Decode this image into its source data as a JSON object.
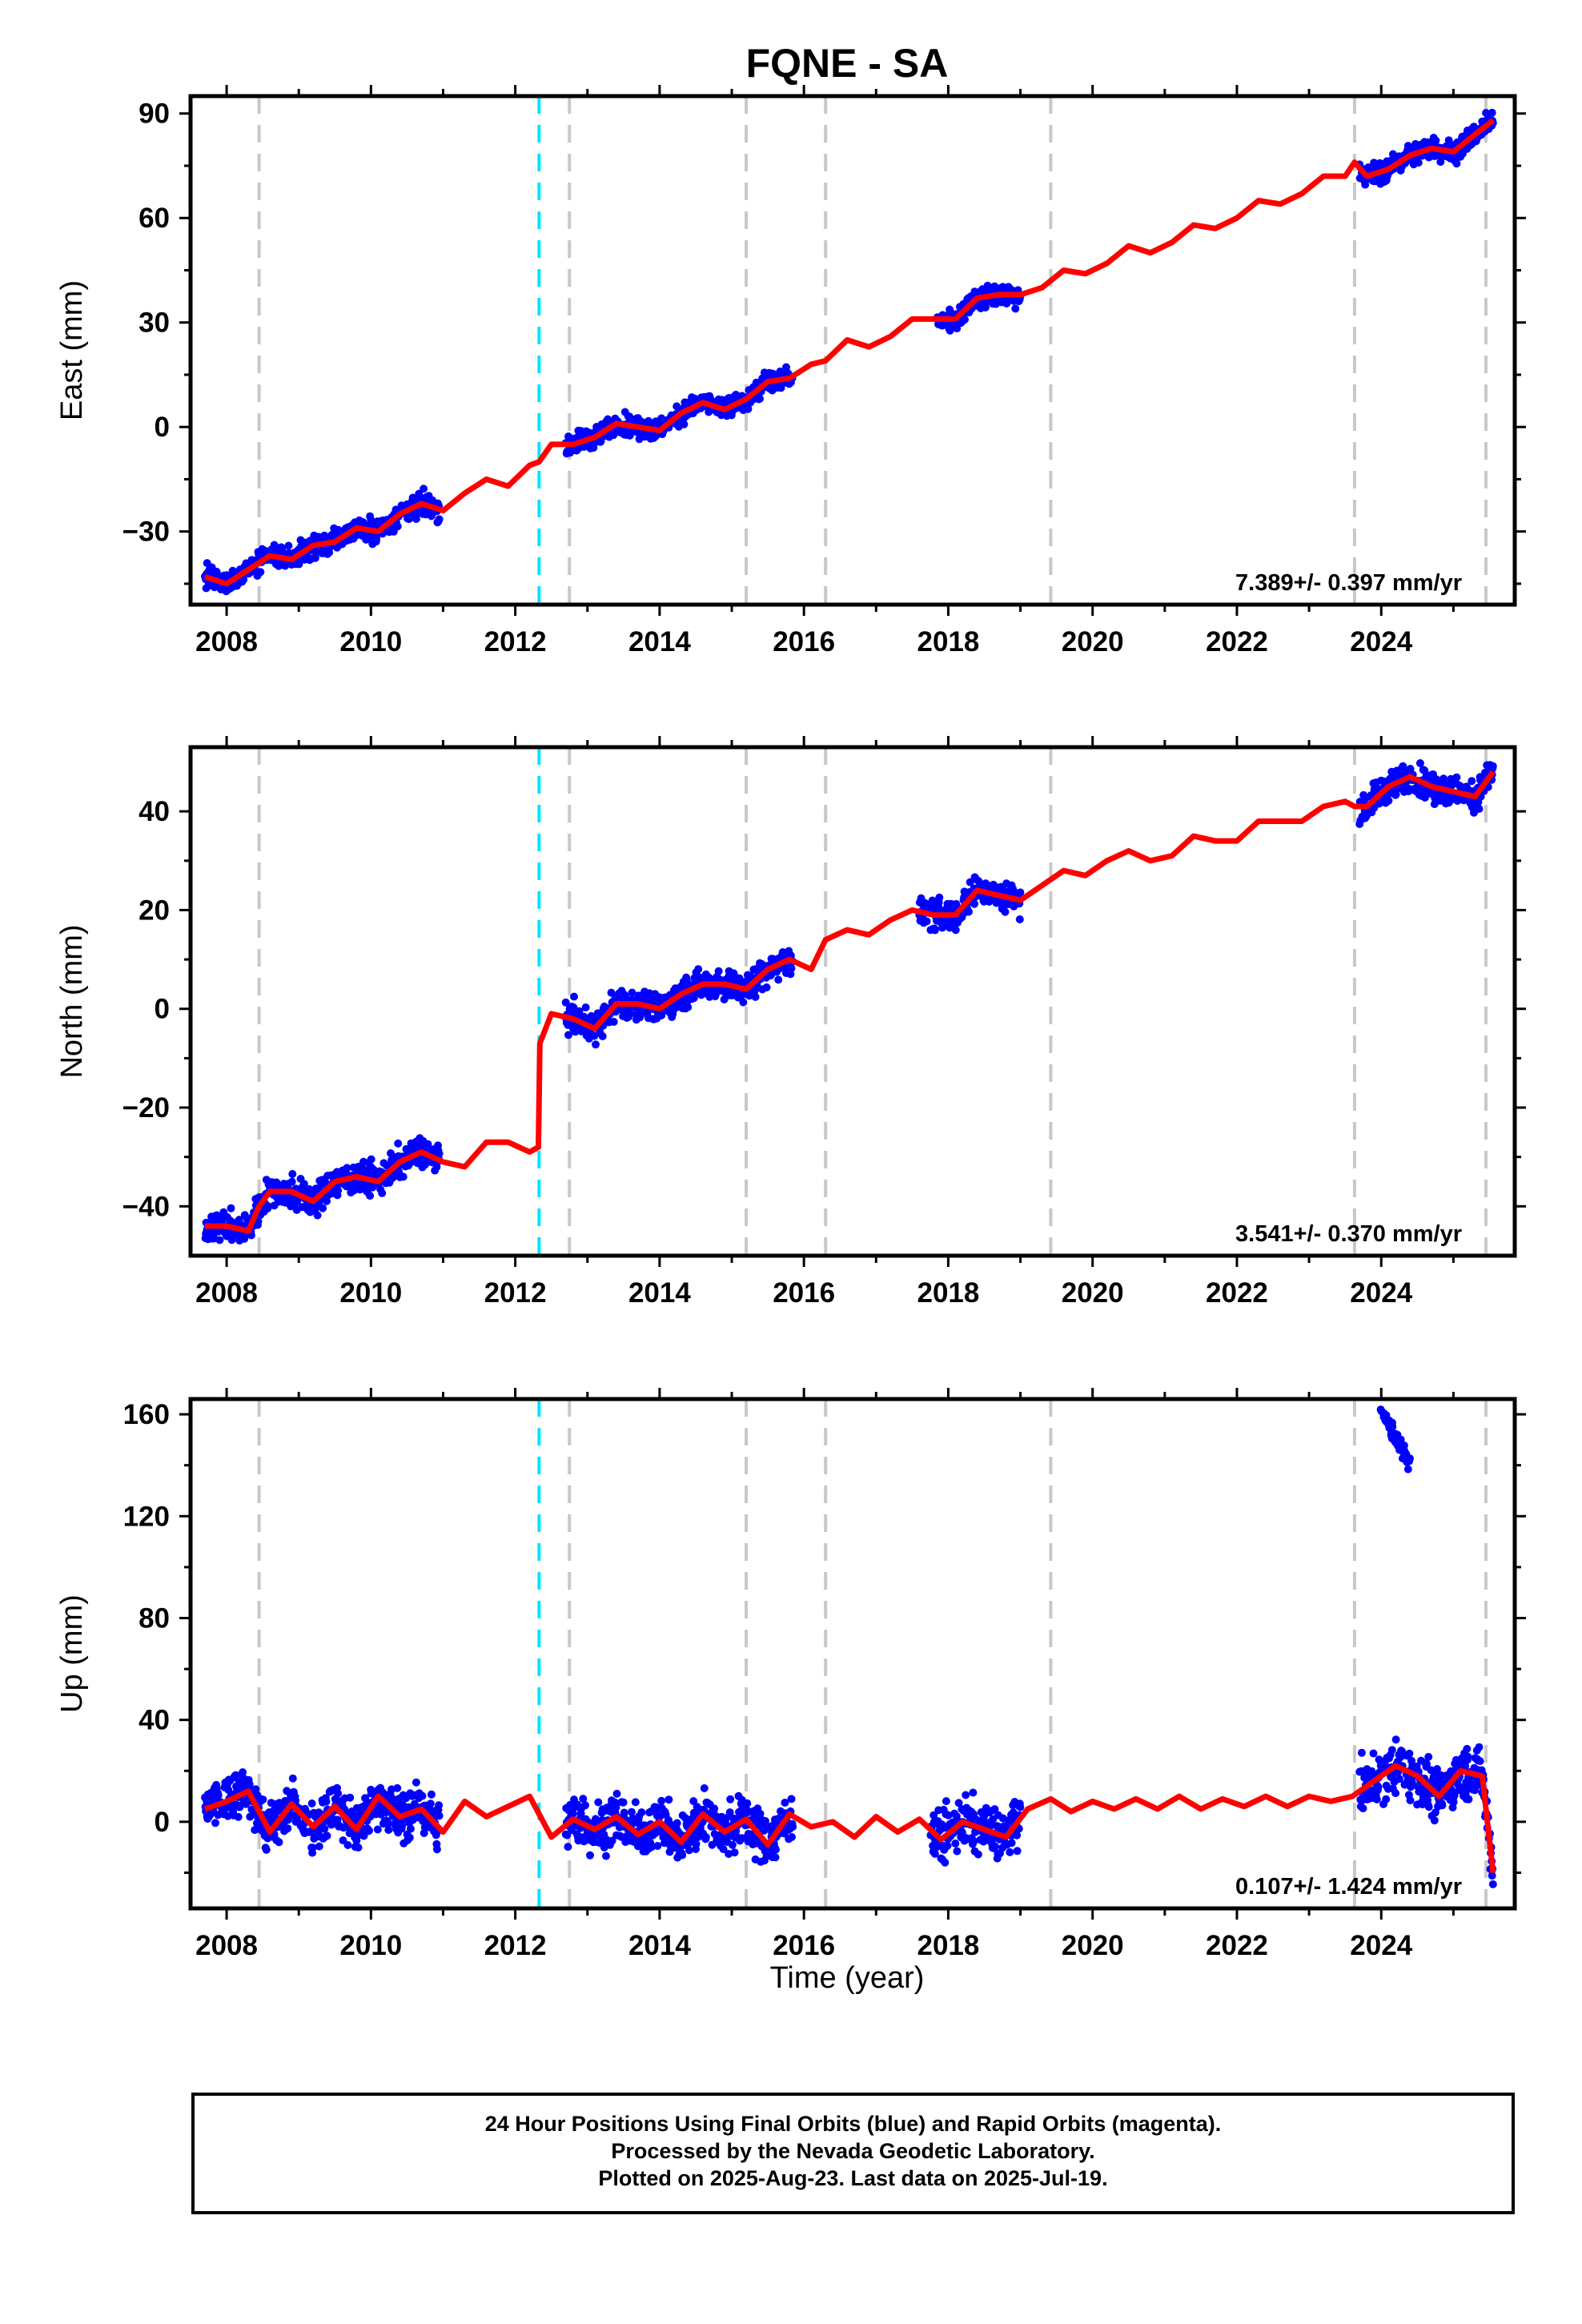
{
  "title": "FQNE - SA",
  "x_label": "Time (year)",
  "footer": {
    "line1": "24 Hour Positions Using Final Orbits (blue) and Rapid Orbits (magenta).",
    "line2": "Processed by the Nevada Geodetic Laboratory.",
    "line3": "Plotted on 2025-Aug-23. Last data on 2025-Jul-19."
  },
  "colors": {
    "points": "#0000ff",
    "model": "#ff0000",
    "equipment_change": "#c8c8c8",
    "earthquake": "#00e5ff"
  },
  "chart_data": [
    {
      "type": "scatter",
      "panel": "east",
      "ylabel": "East (mm)",
      "xlim": [
        2007.5,
        2025.85
      ],
      "ylim": [
        -51,
        95
      ],
      "yticks": [
        -30,
        0,
        30,
        60,
        90
      ],
      "xticks": [
        2008,
        2010,
        2012,
        2014,
        2016,
        2018,
        2020,
        2022,
        2024
      ],
      "rate": "7.389+/- 0.397 mm/yr",
      "equipment_changes": [
        2008.45,
        2012.75,
        2015.2,
        2016.3,
        2019.42,
        2023.63,
        2025.45
      ],
      "earthquakes": [
        2012.33
      ],
      "data_segments": [
        [
          2007.7,
          2010.95
        ],
        [
          2012.7,
          2015.85
        ],
        [
          2017.85,
          2019.0
        ],
        [
          2023.7,
          2025.55
        ]
      ],
      "series": [
        {
          "kind": "model",
          "x": [
            2007.7,
            2008.0,
            2008.3,
            2008.6,
            2008.9,
            2009.2,
            2009.5,
            2009.8,
            2010.1,
            2010.4,
            2010.7,
            2011.0,
            2011.3,
            2011.6,
            2011.9,
            2012.2,
            2012.33,
            2012.5,
            2012.8,
            2013.1,
            2013.4,
            2013.7,
            2014.0,
            2014.3,
            2014.6,
            2014.9,
            2015.2,
            2015.5,
            2015.8,
            2016.1,
            2016.3,
            2016.6,
            2016.9,
            2017.2,
            2017.5,
            2017.8,
            2018.1,
            2018.4,
            2018.7,
            2019.0,
            2019.3,
            2019.6,
            2019.9,
            2020.2,
            2020.5,
            2020.8,
            2021.1,
            2021.4,
            2021.7,
            2022.0,
            2022.3,
            2022.6,
            2022.9,
            2023.2,
            2023.5,
            2023.63,
            2023.8,
            2024.1,
            2024.4,
            2024.7,
            2025.0,
            2025.3,
            2025.55
          ],
          "y": [
            -43,
            -45,
            -41,
            -37,
            -38,
            -34,
            -33,
            -29,
            -30,
            -25,
            -22,
            -24,
            -19,
            -15,
            -17,
            -11,
            -10,
            -5,
            -5,
            -3,
            1,
            0,
            -1,
            4,
            7,
            5,
            8,
            13,
            14,
            18,
            19,
            25,
            23,
            26,
            31,
            31,
            31,
            37,
            38,
            38,
            40,
            45,
            44,
            47,
            52,
            50,
            53,
            58,
            57,
            60,
            65,
            64,
            67,
            72,
            72,
            76,
            72,
            74,
            78,
            80,
            79,
            84,
            88
          ]
        }
      ]
    },
    {
      "type": "scatter",
      "panel": "north",
      "ylabel": "North (mm)",
      "xlim": [
        2007.5,
        2025.85
      ],
      "ylim": [
        -50,
        53
      ],
      "yticks": [
        -40,
        -20,
        0,
        20,
        40
      ],
      "xticks": [
        2008,
        2010,
        2012,
        2014,
        2016,
        2018,
        2020,
        2022,
        2024
      ],
      "rate": "3.541+/- 0.370 mm/yr",
      "equipment_changes": [
        2008.45,
        2012.75,
        2015.2,
        2016.3,
        2019.42,
        2023.63,
        2025.45
      ],
      "earthquakes": [
        2012.33
      ],
      "data_segments": [
        [
          2007.7,
          2010.95
        ],
        [
          2012.7,
          2015.85
        ],
        [
          2017.6,
          2019.0
        ],
        [
          2023.7,
          2025.55
        ]
      ],
      "series": [
        {
          "kind": "model",
          "x": [
            2007.7,
            2008.0,
            2008.3,
            2008.45,
            2008.6,
            2008.9,
            2009.2,
            2009.5,
            2009.8,
            2010.1,
            2010.4,
            2010.7,
            2011.0,
            2011.3,
            2011.6,
            2011.9,
            2012.2,
            2012.32,
            2012.34,
            2012.5,
            2012.8,
            2013.1,
            2013.4,
            2013.7,
            2014.0,
            2014.3,
            2014.6,
            2014.9,
            2015.2,
            2015.5,
            2015.8,
            2016.1,
            2016.3,
            2016.6,
            2016.9,
            2017.2,
            2017.5,
            2017.8,
            2018.1,
            2018.4,
            2018.7,
            2019.0,
            2019.3,
            2019.6,
            2019.9,
            2020.2,
            2020.5,
            2020.8,
            2021.1,
            2021.4,
            2021.7,
            2022.0,
            2022.3,
            2022.6,
            2022.9,
            2023.2,
            2023.5,
            2023.63,
            2023.8,
            2024.1,
            2024.4,
            2024.7,
            2025.0,
            2025.3,
            2025.55
          ],
          "y": [
            -44,
            -44,
            -45,
            -40,
            -37,
            -37,
            -39,
            -35,
            -34,
            -35,
            -31,
            -29,
            -31,
            -32,
            -27,
            -27,
            -29,
            -28,
            -7,
            -1,
            -2,
            -4,
            1,
            1,
            0,
            3,
            5,
            5,
            4,
            8,
            10,
            8,
            14,
            16,
            15,
            18,
            20,
            19,
            19,
            24,
            23,
            22,
            25,
            28,
            27,
            30,
            32,
            30,
            31,
            35,
            34,
            34,
            38,
            38,
            38,
            41,
            42,
            41,
            41,
            45,
            47,
            45,
            44,
            43,
            48
          ]
        }
      ]
    },
    {
      "type": "scatter",
      "panel": "up",
      "ylabel": "Up (mm)",
      "xlim": [
        2007.5,
        2025.85
      ],
      "ylim": [
        -34,
        166
      ],
      "yticks": [
        0,
        40,
        80,
        120,
        160
      ],
      "xticks": [
        2008,
        2010,
        2012,
        2014,
        2016,
        2018,
        2020,
        2022,
        2024
      ],
      "rate": "0.107+/- 1.424 mm/yr",
      "equipment_changes": [
        2008.45,
        2012.75,
        2015.2,
        2016.3,
        2019.42,
        2023.63,
        2025.45
      ],
      "earthquakes": [
        2012.33
      ],
      "data_segments": [
        [
          2007.7,
          2010.95
        ],
        [
          2012.7,
          2015.85
        ],
        [
          2017.75,
          2019.0
        ],
        [
          2023.7,
          2025.55
        ]
      ],
      "outlier_cluster": {
        "x": [
          2024.0,
          2024.4
        ],
        "y": [
          140,
          162
        ]
      },
      "series": [
        {
          "kind": "model",
          "x": [
            2007.7,
            2008.0,
            2008.3,
            2008.6,
            2008.9,
            2009.2,
            2009.5,
            2009.8,
            2010.1,
            2010.4,
            2010.7,
            2011.0,
            2011.3,
            2011.6,
            2011.9,
            2012.2,
            2012.33,
            2012.5,
            2012.8,
            2013.1,
            2013.4,
            2013.7,
            2014.0,
            2014.3,
            2014.6,
            2014.9,
            2015.2,
            2015.5,
            2015.8,
            2016.1,
            2016.4,
            2016.7,
            2017.0,
            2017.3,
            2017.6,
            2017.9,
            2018.2,
            2018.5,
            2018.8,
            2019.1,
            2019.42,
            2019.7,
            2020.0,
            2020.3,
            2020.6,
            2020.9,
            2021.2,
            2021.5,
            2021.8,
            2022.1,
            2022.4,
            2022.7,
            2023.0,
            2023.3,
            2023.6,
            2023.9,
            2024.2,
            2024.5,
            2024.8,
            2025.1,
            2025.4,
            2025.55
          ],
          "y": [
            5,
            8,
            12,
            -4,
            7,
            -2,
            6,
            -3,
            10,
            2,
            5,
            -4,
            8,
            2,
            6,
            10,
            3,
            -6,
            1,
            -3,
            2,
            -5,
            0,
            -8,
            3,
            -4,
            1,
            -9,
            3,
            -2,
            0,
            -6,
            2,
            -4,
            1,
            -7,
            0,
            -3,
            -6,
            5,
            9,
            4,
            8,
            5,
            9,
            5,
            10,
            5,
            9,
            6,
            10,
            6,
            10,
            8,
            10,
            16,
            22,
            18,
            10,
            20,
            18,
            -20
          ]
        }
      ]
    }
  ]
}
